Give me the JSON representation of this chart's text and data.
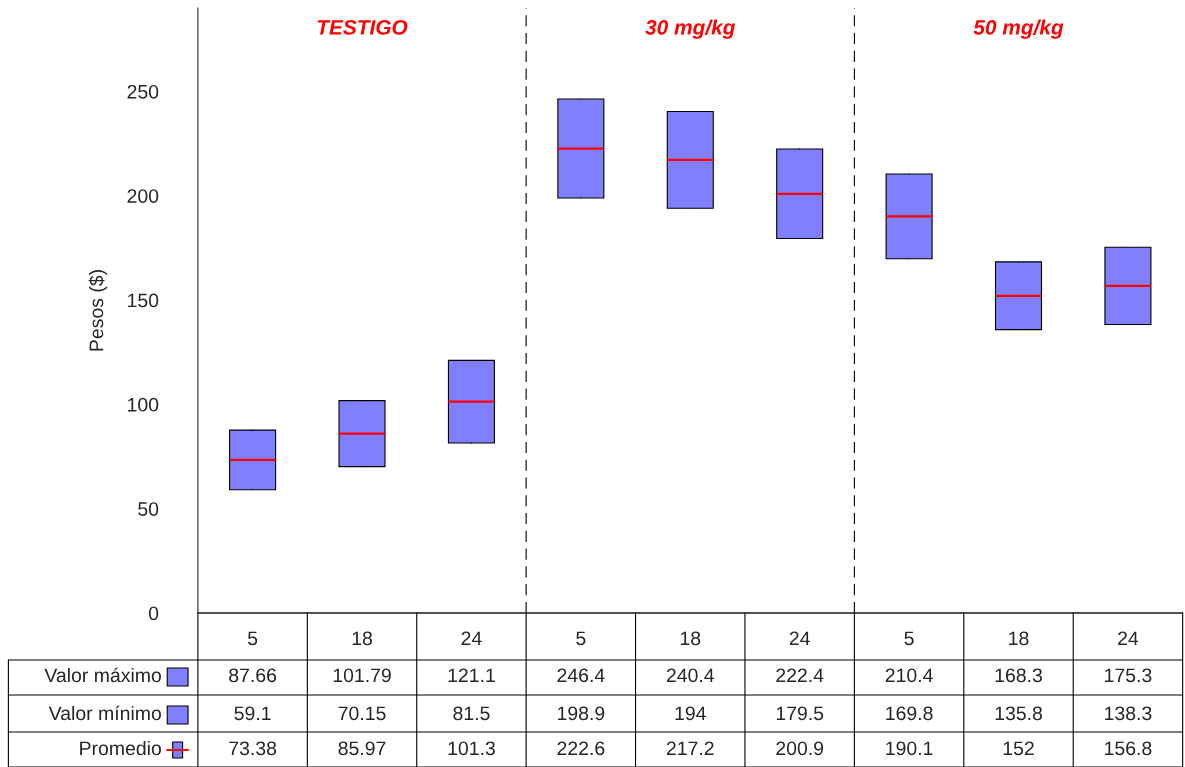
{
  "chart_data": {
    "type": "box",
    "ylabel": "Pesos ($)",
    "categories": [
      "5",
      "18",
      "24",
      "5",
      "18",
      "24",
      "5",
      "18",
      "24"
    ],
    "boxes": [
      {
        "low": 59.1,
        "q1": 59.1,
        "median": 73.38,
        "q3": 87.66,
        "high": 87.66
      },
      {
        "low": 70.15,
        "q1": 70.15,
        "median": 85.97,
        "q3": 101.79,
        "high": 101.79
      },
      {
        "low": 81.5,
        "q1": 81.5,
        "median": 101.3,
        "q3": 121.1,
        "high": 121.1
      },
      {
        "low": 198.9,
        "q1": 198.9,
        "median": 222.6,
        "q3": 246.4,
        "high": 246.4
      },
      {
        "low": 194,
        "q1": 194,
        "median": 217.2,
        "q3": 240.4,
        "high": 240.4
      },
      {
        "low": 179.5,
        "q1": 179.5,
        "median": 200.9,
        "q3": 222.4,
        "high": 222.4
      },
      {
        "low": 169.8,
        "q1": 169.8,
        "median": 190.1,
        "q3": 210.4,
        "high": 210.4
      },
      {
        "low": 135.8,
        "q1": 135.8,
        "median": 152,
        "q3": 168.3,
        "high": 168.3
      },
      {
        "low": 138.3,
        "q1": 138.3,
        "median": 156.8,
        "q3": 175.3,
        "high": 175.3
      }
    ],
    "color": "#8080ff",
    "series": [
      {
        "name": "Valor máximo",
        "color": "#8080ff",
        "values": [
          null,
          null,
          null,
          null,
          null,
          null,
          null,
          null,
          null
        ],
        "value_labels": [
          "87.66",
          "101.79",
          "121.1",
          "246.4",
          "240.4",
          "222.4",
          "210.4",
          "168.3",
          "175.3"
        ]
      },
      {
        "name": "Valor mínimo",
        "color": "#8080ff",
        "values": [
          null,
          null,
          null,
          null,
          null,
          null,
          null,
          null,
          null
        ],
        "value_labels": [
          "59.1",
          "70.15",
          "81.5",
          "198.9",
          "194",
          "179.5",
          "169.8",
          "135.8",
          "138.3"
        ]
      },
      {
        "name": "Promedio",
        "color": "#ff0000",
        "values": [
          null,
          null,
          null,
          null,
          null,
          null,
          null,
          null,
          null
        ],
        "value_labels": [
          "73.38",
          "85.97",
          "101.3",
          "222.6",
          "217.2",
          "200.9",
          "190.1",
          "152",
          "156.8"
        ]
      }
    ],
    "annotations": [
      "TESTIGO",
      "30 mg/kg",
      "50 mg/kg"
    ],
    "ylim": [
      0,
      290
    ],
    "yticks": [
      0,
      50,
      100,
      150,
      200,
      250
    ],
    "grid": false,
    "legend": "bottom"
  }
}
